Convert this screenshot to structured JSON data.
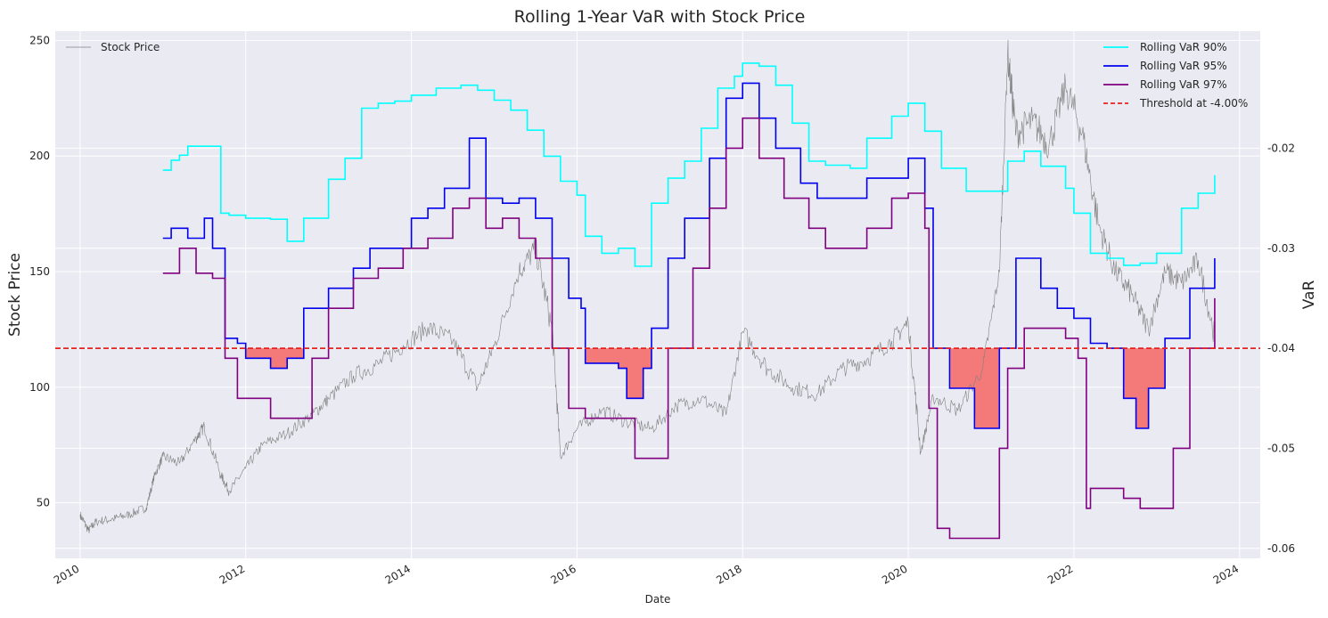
{
  "chart_data": {
    "type": "line",
    "title": "Rolling 1-Year VaR with Stock Price",
    "xlabel": "Date",
    "ylabel_left": "Stock Price",
    "ylabel_right": "VaR",
    "xlim": [
      2009.7,
      2024.25
    ],
    "ylim_left": [
      26,
      254
    ],
    "ylim_right": [
      -0.061,
      -0.0083
    ],
    "x_ticks": [
      2010,
      2012,
      2014,
      2016,
      2018,
      2020,
      2022,
      2024
    ],
    "y_ticks_left": [
      50,
      100,
      150,
      200,
      250
    ],
    "y_ticks_right": [
      -0.06,
      -0.05,
      -0.04,
      -0.03,
      -0.02
    ],
    "y_tick_labels_right": [
      "-0.06",
      "-0.05",
      "-0.04",
      "-0.03",
      "-0.02"
    ],
    "grid": true,
    "threshold": {
      "value": -0.04,
      "label": "Threshold at -4.00%",
      "color": "#e8211e"
    },
    "fill_color": "#f47a79",
    "legend_left": [
      {
        "name": "Stock Price",
        "color": "#808080"
      }
    ],
    "legend_right": [
      {
        "name": "Rolling VaR 90%",
        "color": "#00ffff"
      },
      {
        "name": "Rolling VaR 95%",
        "color": "#0000ee"
      },
      {
        "name": "Rolling VaR 97%",
        "color": "#800080"
      },
      {
        "name": "Threshold at -4.00%",
        "color": "#e8211e"
      }
    ],
    "stock_price": {
      "name": "Stock Price",
      "color": "#808080",
      "x": [
        2010.0,
        2010.1,
        2010.2,
        2010.4,
        2010.6,
        2010.8,
        2010.9,
        2011.0,
        2011.2,
        2011.4,
        2011.5,
        2011.7,
        2011.8,
        2012.0,
        2012.2,
        2012.5,
        2012.8,
        2013.0,
        2013.3,
        2013.6,
        2013.9,
        2014.2,
        2014.5,
        2014.8,
        2015.0,
        2015.3,
        2015.5,
        2015.7,
        2015.8,
        2016.0,
        2016.3,
        2016.6,
        2016.9,
        2017.2,
        2017.5,
        2017.8,
        2018.0,
        2018.3,
        2018.6,
        2018.9,
        2019.2,
        2019.5,
        2019.8,
        2020.0,
        2020.15,
        2020.3,
        2020.6,
        2020.9,
        2021.1,
        2021.2,
        2021.3,
        2021.5,
        2021.7,
        2021.9,
        2022.1,
        2022.3,
        2022.5,
        2022.7,
        2022.9,
        2023.1,
        2023.3,
        2023.5,
        2023.7
      ],
      "values": [
        45,
        38,
        42,
        43,
        45,
        48,
        62,
        70,
        67,
        78,
        83,
        62,
        55,
        65,
        75,
        80,
        88,
        95,
        105,
        110,
        118,
        126,
        120,
        100,
        118,
        150,
        160,
        125,
        70,
        82,
        90,
        85,
        82,
        92,
        95,
        88,
        124,
        108,
        100,
        97,
        108,
        112,
        120,
        128,
        72,
        96,
        90,
        108,
        150,
        244,
        210,
        215,
        205,
        230,
        210,
        170,
        150,
        140,
        125,
        150,
        145,
        155,
        122
      ]
    },
    "series": [
      {
        "name": "Rolling VaR 90%",
        "color": "#00ffff",
        "x": [
          2011.0,
          2011.1,
          2011.2,
          2011.3,
          2011.5,
          2011.7,
          2011.8,
          2012.0,
          2012.3,
          2012.5,
          2012.7,
          2013.0,
          2013.2,
          2013.4,
          2013.6,
          2013.8,
          2014.0,
          2014.3,
          2014.6,
          2014.8,
          2015.0,
          2015.2,
          2015.4,
          2015.6,
          2015.8,
          2016.0,
          2016.1,
          2016.3,
          2016.5,
          2016.7,
          2016.9,
          2017.1,
          2017.3,
          2017.5,
          2017.7,
          2017.9,
          2018.0,
          2018.2,
          2018.4,
          2018.6,
          2018.8,
          2019.0,
          2019.3,
          2019.5,
          2019.8,
          2020.0,
          2020.2,
          2020.4,
          2020.7,
          2021.0,
          2021.2,
          2021.4,
          2021.6,
          2021.9,
          2022.0,
          2022.2,
          2022.4,
          2022.6,
          2022.8,
          2023.0,
          2023.3,
          2023.5,
          2023.7
        ],
        "values": [
          -0.0222,
          -0.0212,
          -0.0207,
          -0.0198,
          -0.0198,
          -0.0265,
          -0.0267,
          -0.027,
          -0.0271,
          -0.0293,
          -0.027,
          -0.0231,
          -0.021,
          -0.016,
          -0.0155,
          -0.0153,
          -0.0147,
          -0.014,
          -0.0137,
          -0.0142,
          -0.0152,
          -0.0162,
          -0.0182,
          -0.0208,
          -0.0233,
          -0.0247,
          -0.0288,
          -0.0305,
          -0.03,
          -0.0318,
          -0.0255,
          -0.023,
          -0.0213,
          -0.018,
          -0.014,
          -0.0128,
          -0.0115,
          -0.0118,
          -0.0137,
          -0.0175,
          -0.0213,
          -0.0217,
          -0.022,
          -0.019,
          -0.0168,
          -0.0155,
          -0.0183,
          -0.022,
          -0.0243,
          -0.0243,
          -0.0213,
          -0.0203,
          -0.0218,
          -0.024,
          -0.0265,
          -0.0305,
          -0.031,
          -0.0317,
          -0.0315,
          -0.0305,
          -0.026,
          -0.0245,
          -0.0227
        ]
      },
      {
        "name": "Rolling VaR 95%",
        "color": "#0000ee",
        "x": [
          2011.0,
          2011.1,
          2011.3,
          2011.5,
          2011.6,
          2011.75,
          2011.9,
          2012.0,
          2012.3,
          2012.5,
          2012.7,
          2013.0,
          2013.3,
          2013.5,
          2013.8,
          2014.0,
          2014.2,
          2014.4,
          2014.7,
          2014.9,
          2015.1,
          2015.3,
          2015.5,
          2015.7,
          2015.9,
          2016.05,
          2016.1,
          2016.3,
          2016.5,
          2016.6,
          2016.8,
          2016.9,
          2017.1,
          2017.3,
          2017.6,
          2017.8,
          2018.0,
          2018.2,
          2018.4,
          2018.7,
          2018.9,
          2019.2,
          2019.5,
          2019.8,
          2020.0,
          2020.2,
          2020.3,
          2020.5,
          2020.6,
          2020.8,
          2021.0,
          2021.1,
          2021.3,
          2021.6,
          2021.8,
          2022.0,
          2022.2,
          2022.4,
          2022.6,
          2022.75,
          2022.9,
          2023.1,
          2023.4,
          2023.7
        ],
        "values": [
          -0.029,
          -0.028,
          -0.029,
          -0.027,
          -0.03,
          -0.039,
          -0.0395,
          -0.041,
          -0.042,
          -0.041,
          -0.036,
          -0.034,
          -0.032,
          -0.03,
          -0.03,
          -0.027,
          -0.026,
          -0.024,
          -0.019,
          -0.025,
          -0.0255,
          -0.025,
          -0.027,
          -0.031,
          -0.035,
          -0.036,
          -0.0415,
          -0.0415,
          -0.042,
          -0.045,
          -0.042,
          -0.038,
          -0.031,
          -0.027,
          -0.021,
          -0.015,
          -0.0135,
          -0.017,
          -0.02,
          -0.0235,
          -0.025,
          -0.025,
          -0.023,
          -0.023,
          -0.021,
          -0.026,
          -0.04,
          -0.044,
          -0.044,
          -0.048,
          -0.048,
          -0.04,
          -0.031,
          -0.034,
          -0.036,
          -0.037,
          -0.0395,
          -0.04,
          -0.045,
          -0.048,
          -0.044,
          -0.039,
          -0.034,
          -0.031
        ]
      },
      {
        "name": "Rolling VaR 97%",
        "color": "#800080",
        "x": [
          2011.0,
          2011.2,
          2011.4,
          2011.6,
          2011.75,
          2011.9,
          2012.0,
          2012.3,
          2012.6,
          2012.8,
          2013.0,
          2013.3,
          2013.6,
          2013.9,
          2014.2,
          2014.5,
          2014.7,
          2014.9,
          2015.1,
          2015.3,
          2015.5,
          2015.7,
          2015.9,
          2016.1,
          2016.4,
          2016.7,
          2016.9,
          2017.1,
          2017.4,
          2017.6,
          2017.8,
          2018.0,
          2018.2,
          2018.5,
          2018.8,
          2019.0,
          2019.3,
          2019.5,
          2019.8,
          2020.0,
          2020.2,
          2020.25,
          2020.35,
          2020.5,
          2020.8,
          2021.0,
          2021.1,
          2021.2,
          2021.4,
          2021.7,
          2021.9,
          2022.05,
          2022.15,
          2022.2,
          2022.4,
          2022.6,
          2022.8,
          2023.0,
          2023.2,
          2023.4,
          2023.7
        ],
        "values": [
          -0.0325,
          -0.03,
          -0.0325,
          -0.033,
          -0.041,
          -0.045,
          -0.045,
          -0.047,
          -0.047,
          -0.041,
          -0.036,
          -0.033,
          -0.032,
          -0.03,
          -0.029,
          -0.026,
          -0.025,
          -0.028,
          -0.027,
          -0.029,
          -0.031,
          -0.04,
          -0.046,
          -0.047,
          -0.047,
          -0.051,
          -0.051,
          -0.04,
          -0.032,
          -0.026,
          -0.02,
          -0.017,
          -0.021,
          -0.025,
          -0.028,
          -0.03,
          -0.03,
          -0.028,
          -0.025,
          -0.0245,
          -0.028,
          -0.046,
          -0.058,
          -0.059,
          -0.059,
          -0.059,
          -0.05,
          -0.042,
          -0.038,
          -0.038,
          -0.039,
          -0.041,
          -0.056,
          -0.054,
          -0.054,
          -0.055,
          -0.056,
          -0.056,
          -0.05,
          -0.04,
          -0.035
        ]
      }
    ]
  }
}
